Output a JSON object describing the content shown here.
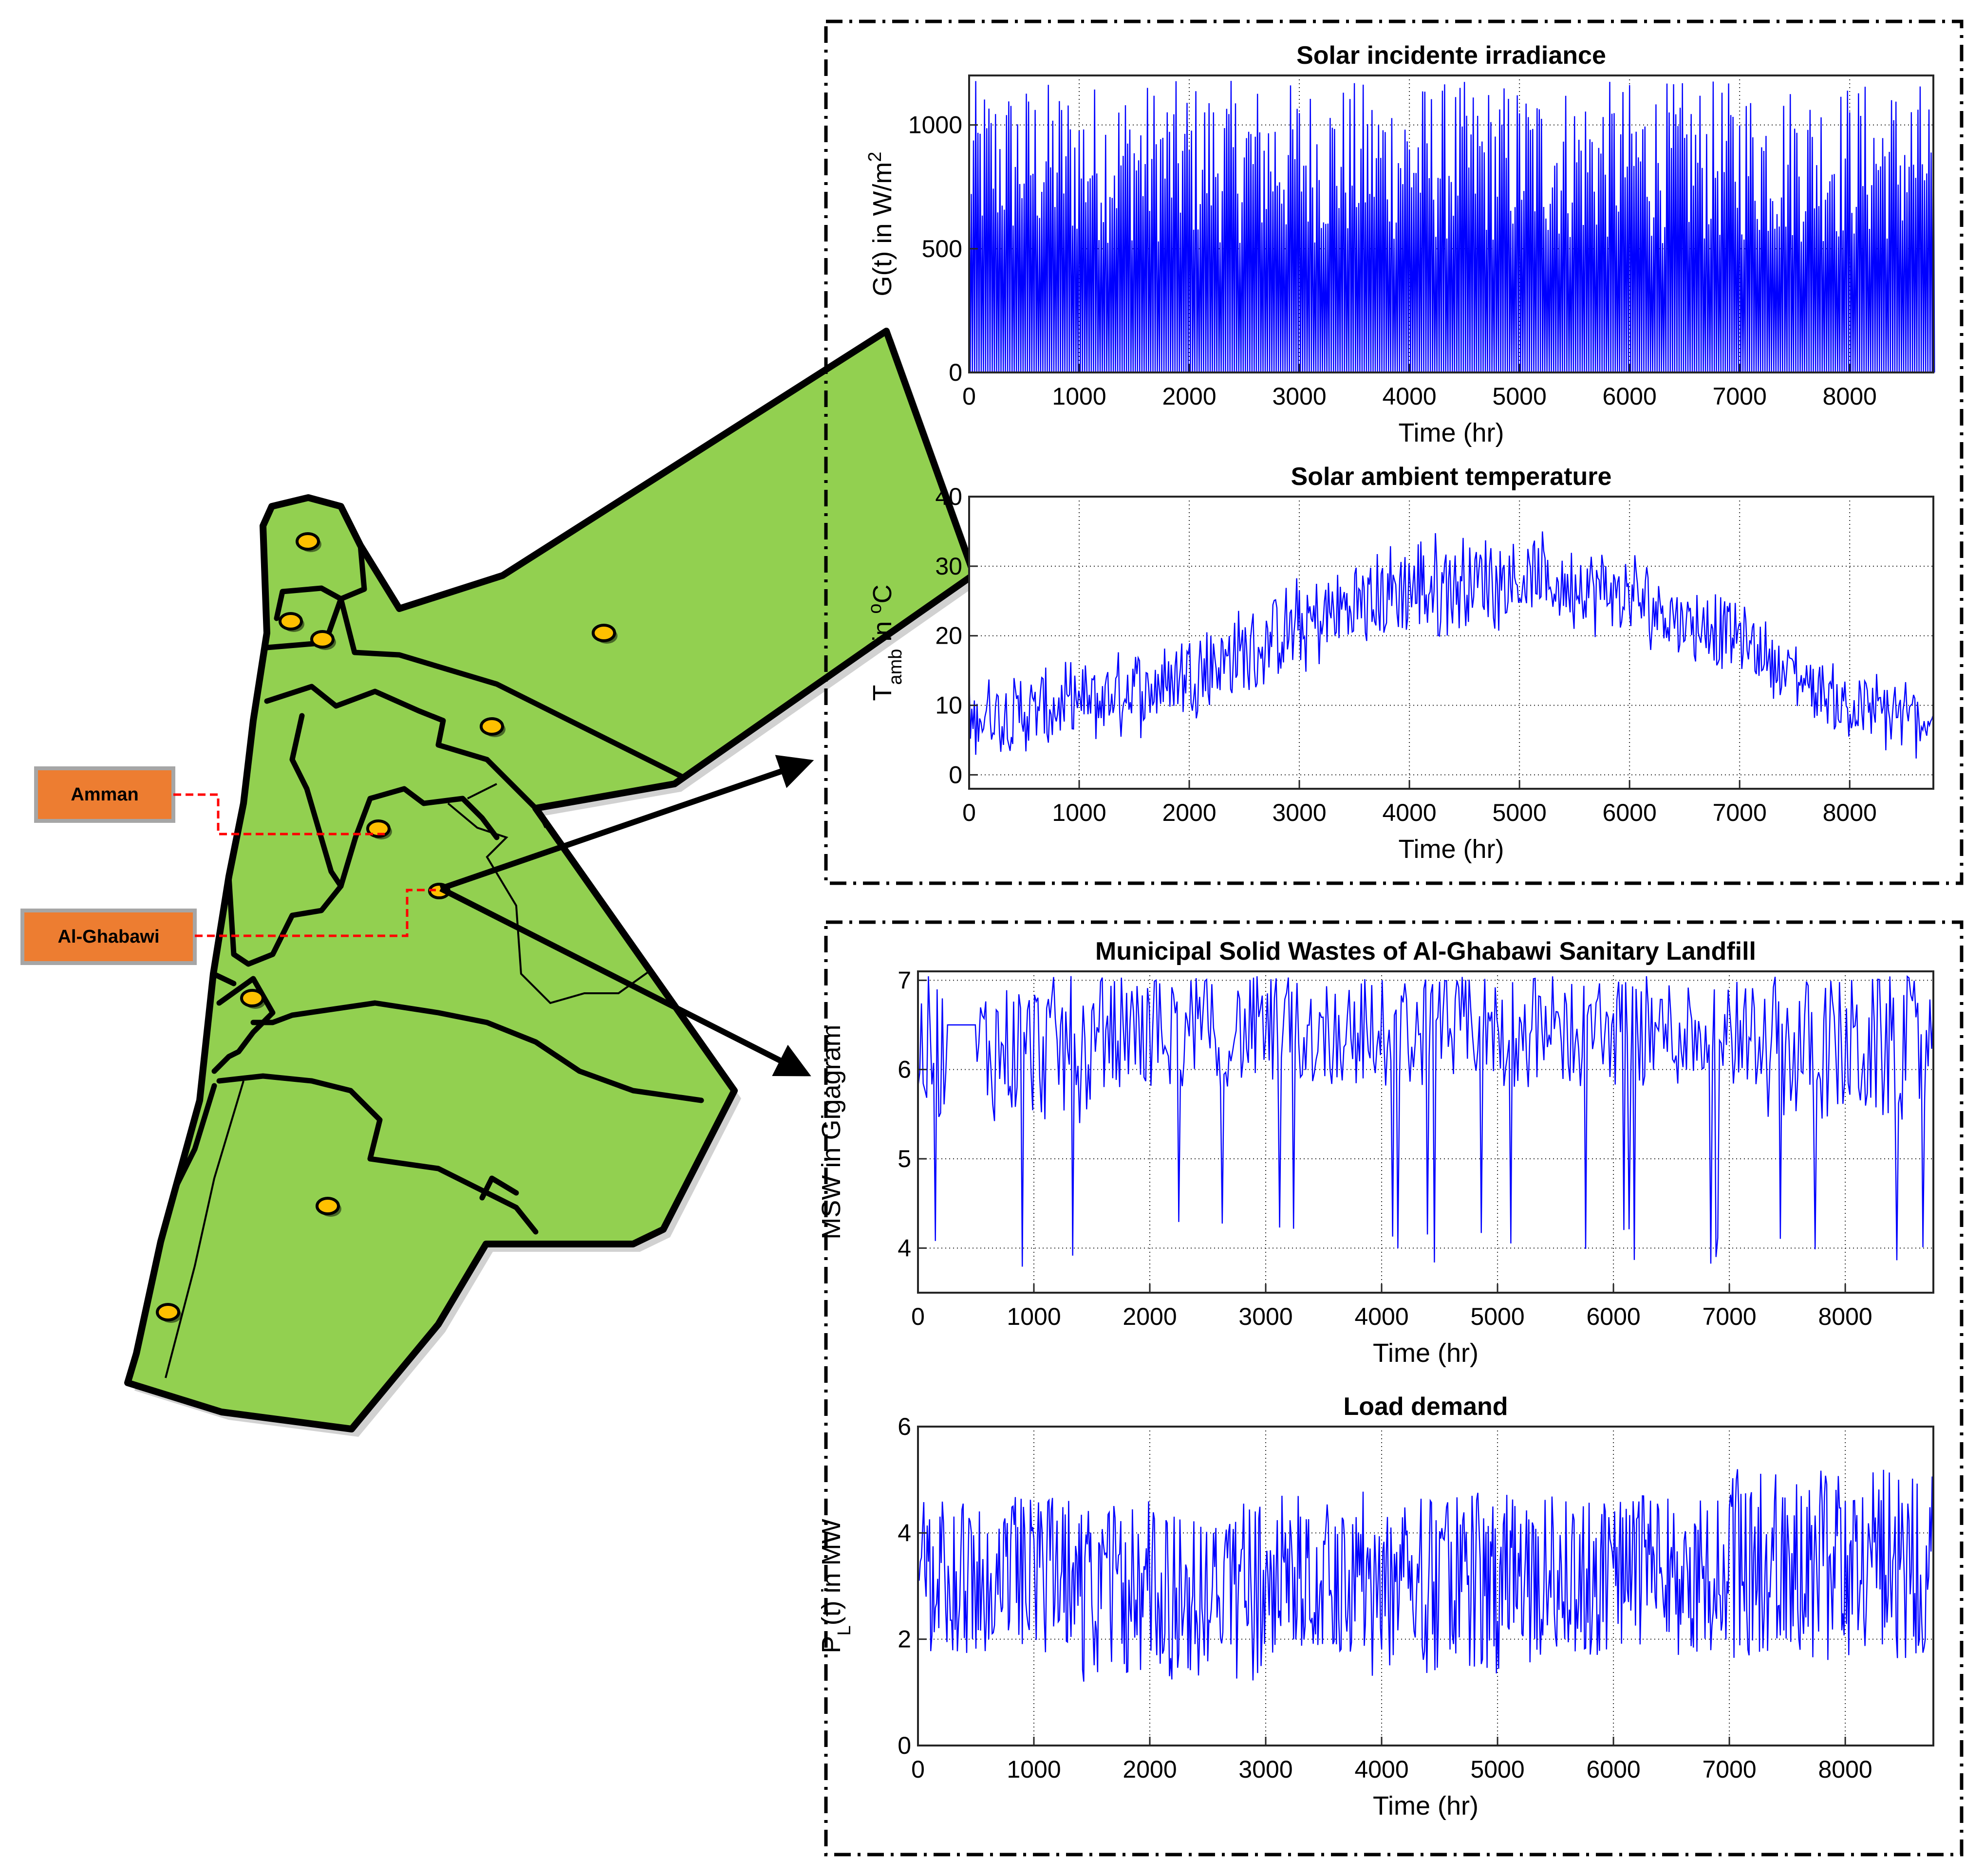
{
  "map": {
    "labels": [
      {
        "name": "amman-label",
        "text": "Amman"
      },
      {
        "name": "al-ghabawi-label",
        "text": "Al-Ghabawi"
      }
    ],
    "colors": {
      "land": "#92d050",
      "border": "#000000",
      "marker": "#ffc000",
      "tag": "#ed7d31",
      "leader": "#ff0000"
    }
  },
  "chart_data": [
    {
      "type": "line",
      "title": "Solar incidente irradiance",
      "ylabel": "G(t) in W/m",
      "ylabel_sup": "2",
      "xlabel": "Time (hr)",
      "xlim": [
        0,
        8760
      ],
      "ylim": [
        0,
        1200
      ],
      "xticks": [
        0,
        1000,
        2000,
        3000,
        4000,
        5000,
        6000,
        7000,
        8000
      ],
      "yticks": [
        0,
        500,
        1000
      ],
      "grid": true,
      "color": "#0000ff",
      "profile": {
        "step": 40,
        "low": 0,
        "high_min": 520,
        "high_max": 1180
      }
    },
    {
      "type": "line",
      "title": "Solar ambient temperature",
      "ylabel_parts": [
        "T",
        "amb",
        " in ",
        "o",
        "C"
      ],
      "xlabel": "Time (hr)",
      "xlim": [
        0,
        8760
      ],
      "ylim": [
        -2,
        40
      ],
      "xticks": [
        0,
        1000,
        2000,
        3000,
        4000,
        5000,
        6000,
        7000,
        8000
      ],
      "yticks": [
        0,
        10,
        20,
        30,
        40
      ],
      "grid": true,
      "color": "#0000ff",
      "seasonal_envelope": {
        "hours": [
          0,
          500,
          1000,
          1500,
          2000,
          2500,
          3000,
          3500,
          4000,
          4500,
          5000,
          5500,
          6000,
          6500,
          7000,
          7500,
          8000,
          8760
        ],
        "low": [
          2,
          2,
          3,
          5,
          8,
          10,
          13,
          17,
          18,
          19,
          21,
          20,
          18,
          16,
          14,
          9,
          4,
          2
        ],
        "high": [
          13,
          14,
          15,
          17,
          20,
          23,
          27,
          30,
          33,
          34,
          34,
          32,
          31,
          27,
          24,
          18,
          14,
          12
        ]
      }
    },
    {
      "type": "line",
      "title": "Municipal Solid Wastes of Al-Ghabawi Sanitary Landfill",
      "ylabel": "MSW in Gigagram",
      "xlabel": "Time (hr)",
      "xlim": [
        0,
        8760
      ],
      "ylim": [
        3.5,
        7.1
      ],
      "xticks": [
        0,
        1000,
        2000,
        3000,
        4000,
        5000,
        6000,
        7000,
        8000
      ],
      "yticks": [
        4,
        5,
        6,
        7
      ],
      "grid": true,
      "color": "#0000ff",
      "band": {
        "low": 5.4,
        "high": 7.05,
        "dip_value": 3.7
      }
    },
    {
      "type": "line",
      "title": "Load demand",
      "ylabel_parts": [
        "P",
        "L",
        "(t) in MW"
      ],
      "xlabel": "Time (hr)",
      "xlim": [
        0,
        8760
      ],
      "ylim": [
        0,
        6
      ],
      "xticks": [
        0,
        1000,
        2000,
        3000,
        4000,
        5000,
        6000,
        7000,
        8000
      ],
      "yticks": [
        0,
        2,
        4,
        6
      ],
      "grid": true,
      "color": "#0000ff",
      "band": {
        "low": 1.0,
        "high": 5.4
      }
    }
  ]
}
